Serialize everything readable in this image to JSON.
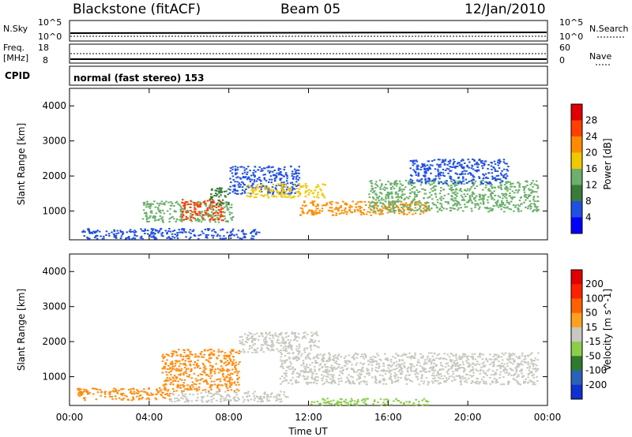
{
  "header": {
    "station": "Blackstone (fitACF)",
    "beam": "Beam 05",
    "date": "12/Jan/2010"
  },
  "status_panels": {
    "nsky_label": "N.Sky",
    "nsky_ticks": [
      "10^5",
      "10^0"
    ],
    "nsearch_label": "N.Search",
    "nsearch_ticks": [
      "10^5",
      "10^0"
    ],
    "freq_label": "Freq.",
    "freq_unit": "[MHz]",
    "freq_ticks": [
      "18",
      "8"
    ],
    "nave_label": "Nave",
    "nave_ticks": [
      "60",
      "0"
    ],
    "cpid_label": "CPID",
    "cpid_text": "normal (fast stereo) 153"
  },
  "chart_data": [
    {
      "type": "heatmap",
      "name": "power",
      "ylabel": "Slant Range [km]",
      "xlabel": "",
      "y_ticks": [
        "4000",
        "3000",
        "2000",
        "1000"
      ],
      "ylim": [
        180,
        4500
      ],
      "xlim_hours": [
        0,
        24
      ],
      "colorbar_label": "Power [dB]",
      "colorbar_ticks": [
        "28",
        "24",
        "20",
        "16",
        "12",
        "8",
        "4"
      ],
      "colorbar_colors": [
        "#0000ff",
        "#2050e0",
        "#3a7a3a",
        "#6cb06c",
        "#f0c800",
        "#ff8c00",
        "#ff4000",
        "#e00000"
      ],
      "regions": [
        {
          "x": [
            0.6,
            9.5
          ],
          "y": [
            220,
            520
          ],
          "level": 1
        },
        {
          "x": [
            3.6,
            8.2
          ],
          "y": [
            700,
            1300
          ],
          "level": 3
        },
        {
          "x": [
            5.6,
            7.7
          ],
          "y": [
            750,
            1350
          ],
          "level": 6
        },
        {
          "x": [
            7.0,
            8.0
          ],
          "y": [
            1200,
            1700
          ],
          "level": 2
        },
        {
          "x": [
            8.0,
            11.5
          ],
          "y": [
            1500,
            2300
          ],
          "level": 1
        },
        {
          "x": [
            8.8,
            12.8
          ],
          "y": [
            1400,
            1800
          ],
          "level": 4
        },
        {
          "x": [
            11.5,
            18.0
          ],
          "y": [
            900,
            1300
          ],
          "level": 5
        },
        {
          "x": [
            15.0,
            23.5
          ],
          "y": [
            1000,
            1900
          ],
          "level": 3
        },
        {
          "x": [
            17.0,
            22.0
          ],
          "y": [
            1800,
            2500
          ],
          "level": 1
        }
      ]
    },
    {
      "type": "heatmap",
      "name": "velocity",
      "ylabel": "Slant Range [km]",
      "xlabel": "Time UT",
      "x_ticks": [
        "00:00",
        "04:00",
        "08:00",
        "12:00",
        "16:00",
        "20:00",
        "00:00"
      ],
      "y_ticks": [
        "4000",
        "3000",
        "2000",
        "1000"
      ],
      "ylim": [
        180,
        4500
      ],
      "xlim_hours": [
        0,
        24
      ],
      "colorbar_label": "Velocity [m s^-1]",
      "colorbar_ticks": [
        "200",
        "100",
        "50",
        "15",
        "-15",
        "-50",
        "-100",
        "-200"
      ],
      "colorbar_colors": [
        "#1030d0",
        "#2a62b8",
        "#2f7a2f",
        "#8ace4a",
        "#c8c8c0",
        "#ffa020",
        "#ff6000",
        "#ff2000",
        "#e00000"
      ],
      "regions": [
        {
          "x": [
            0.3,
            5.0
          ],
          "y": [
            350,
            700
          ],
          "level": "orange"
        },
        {
          "x": [
            4.6,
            8.5
          ],
          "y": [
            600,
            1800
          ],
          "level": "orange"
        },
        {
          "x": [
            5.0,
            11.0
          ],
          "y": [
            300,
            600
          ],
          "level": "gray"
        },
        {
          "x": [
            8.5,
            12.5
          ],
          "y": [
            1700,
            2300
          ],
          "level": "gray"
        },
        {
          "x": [
            10.5,
            23.5
          ],
          "y": [
            800,
            1700
          ],
          "level": "gray"
        },
        {
          "x": [
            12.0,
            18.0
          ],
          "y": [
            200,
            400
          ],
          "level": "green"
        }
      ]
    }
  ]
}
